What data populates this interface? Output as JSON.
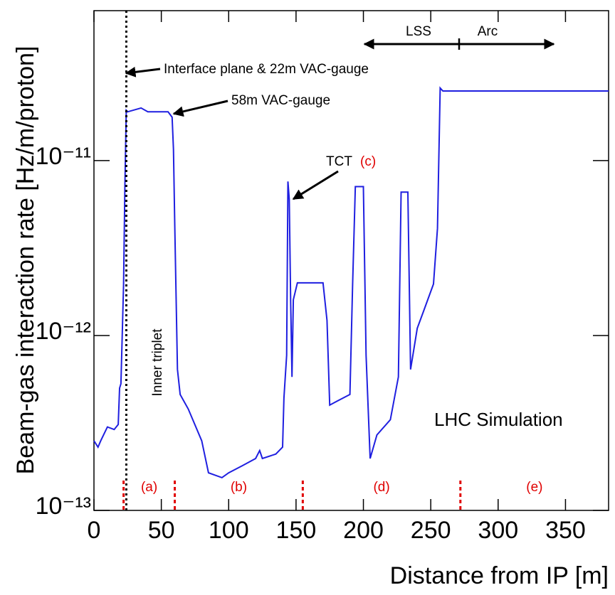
{
  "chart_data": {
    "type": "line",
    "xlabel": "Distance from IP [m]",
    "ylabel": "Beam-gas interaction rate [Hz/m/proton]",
    "log_y": true,
    "color": "#1f1fe0",
    "xlim": [
      0,
      382
    ],
    "ylim": [
      1e-13,
      7.2e-11
    ],
    "xticks": [
      0,
      50,
      100,
      150,
      200,
      250,
      300,
      350
    ],
    "yticks": [
      {
        "value": 1e-13,
        "label": "10⁻¹³"
      },
      {
        "value": 1e-12,
        "label": "10⁻¹²"
      },
      {
        "value": 1e-11,
        "label": "10⁻¹¹"
      }
    ],
    "x": [
      0,
      3,
      5,
      10,
      15,
      18,
      19,
      20,
      22,
      23,
      24,
      25,
      35,
      40,
      55,
      58,
      59,
      60,
      62,
      64,
      70,
      80,
      85,
      95,
      100,
      110,
      120,
      123,
      125,
      135,
      140,
      141,
      143,
      144,
      145,
      146,
      147,
      148,
      151,
      170,
      173,
      175,
      180,
      190,
      192,
      194,
      200,
      202,
      205,
      210,
      220,
      226,
      228,
      233,
      235,
      240,
      245,
      252,
      255,
      257,
      259,
      382
    ],
    "values": [
      2.5e-13,
      2.3e-13,
      2.5e-13,
      3e-13,
      2.9e-13,
      3.1e-13,
      5e-13,
      5.3e-13,
      1.95e-12,
      7.3e-12,
      1.94e-11,
      1.9e-11,
      2e-11,
      1.9e-11,
      1.9e-11,
      1.77e-11,
      1.16e-11,
      4.1e-12,
      6.4e-13,
      4.6e-13,
      3.8e-13,
      2.5e-13,
      1.64e-13,
      1.54e-13,
      1.64e-13,
      1.8e-13,
      1.98e-13,
      2.2e-13,
      1.98e-13,
      2.1e-13,
      2.3e-13,
      4.4e-13,
      7.7e-13,
      7.6e-12,
      6e-12,
      1.6e-12,
      5.8e-13,
      1.6e-12,
      2e-12,
      2e-12,
      1.22e-12,
      4e-13,
      4.2e-13,
      4.6e-13,
      1.97e-12,
      7.1e-12,
      7.1e-12,
      7.7e-13,
      1.98e-13,
      2.7e-13,
      3.3e-13,
      5.8e-13,
      6.6e-12,
      6.6e-12,
      6.4e-13,
      1.1e-12,
      1.4e-12,
      1.97e-12,
      4.1e-12,
      2.6e-11,
      2.5e-11,
      2.5e-11
    ],
    "vac_gauge_line": 24,
    "region_boundaries": [
      22,
      60,
      155,
      272
    ],
    "region_labels": [
      "(a)",
      "(b)",
      "(d)",
      "(e)"
    ],
    "annotations": [
      "Interface plane & 22m VAC-gauge",
      "58m VAC-gauge",
      "TCT",
      "(c)",
      "Inner triplet",
      "LHC Simulation",
      "LSS",
      "Arc"
    ]
  }
}
